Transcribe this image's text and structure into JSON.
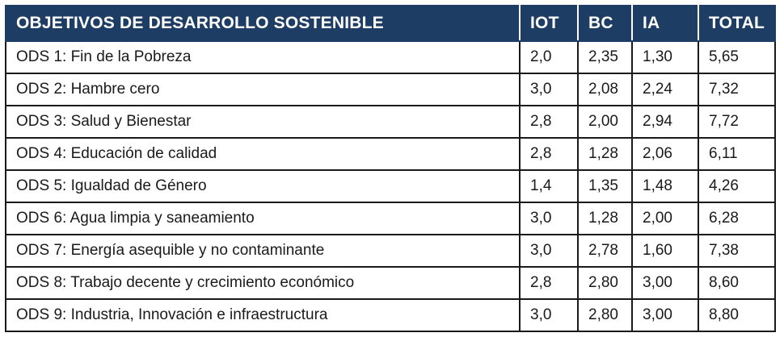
{
  "table": {
    "headers": [
      "OBJETIVOS DE DESARROLLO SOSTENIBLE",
      "IOT",
      "BC",
      "IA",
      "TOTAL"
    ],
    "rows": [
      [
        "ODS 1: Fin de la Pobreza",
        "2,0",
        "2,35",
        "1,30",
        "5,65"
      ],
      [
        "ODS 2: Hambre cero",
        "3,0",
        "2,08",
        "2,24",
        "7,32"
      ],
      [
        "ODS 3: Salud y Bienestar",
        "2,8",
        "2,00",
        "2,94",
        "7,72"
      ],
      [
        "ODS 4: Educación de calidad",
        "2,8",
        "1,28",
        "2,06",
        "6,11"
      ],
      [
        "ODS 5: Igualdad de Género",
        "1,4",
        "1,35",
        "1,48",
        "4,26"
      ],
      [
        "ODS 6: Agua limpia y saneamiento",
        "3,0",
        "1,28",
        "2,00",
        "6,28"
      ],
      [
        "ODS 7: Energía asequible y no contaminante",
        "3,0",
        "2,78",
        "1,60",
        "7,38"
      ],
      [
        "ODS 8: Trabajo decente y crecimiento económico",
        "2,8",
        "2,80",
        "3,00",
        "8,60"
      ],
      [
        "ODS 9: Industria, Innovación e infraestructura",
        "3,0",
        "2,80",
        "3,00",
        "8,80"
      ]
    ]
  },
  "colors": {
    "header_bg": "#1d3d64",
    "header_text": "#ffffff",
    "border": "#1a1a1a"
  }
}
